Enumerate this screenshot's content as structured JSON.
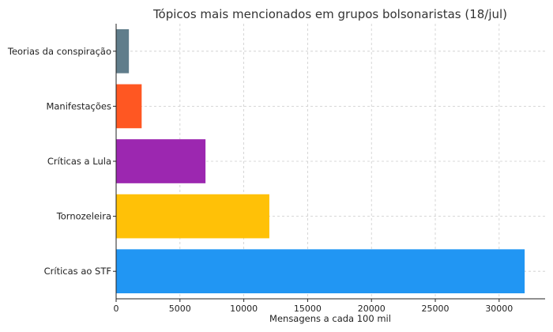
{
  "chart_data": {
    "type": "bar",
    "orientation": "horizontal",
    "title": "Tópicos mais mencionados em grupos bolsonaristas (18/jul)",
    "xlabel": "Mensagens a cada 100 mil",
    "ylabel": "",
    "categories": [
      "Críticas ao STF",
      "Tornozeleira",
      "Críticas a Lula",
      "Manifestações",
      "Teorias da conspiração"
    ],
    "values": [
      32000,
      12000,
      7000,
      2000,
      1000
    ],
    "colors": [
      "#2196F3",
      "#FFC107",
      "#9C27B0",
      "#FF5722",
      "#607D8B"
    ],
    "xlim": [
      0,
      33600
    ],
    "xticks": [
      0,
      5000,
      10000,
      15000,
      20000,
      25000,
      30000
    ],
    "xtick_labels": [
      "0",
      "5000",
      "10000",
      "15000",
      "20000",
      "25000",
      "30000"
    ],
    "grid": true
  }
}
